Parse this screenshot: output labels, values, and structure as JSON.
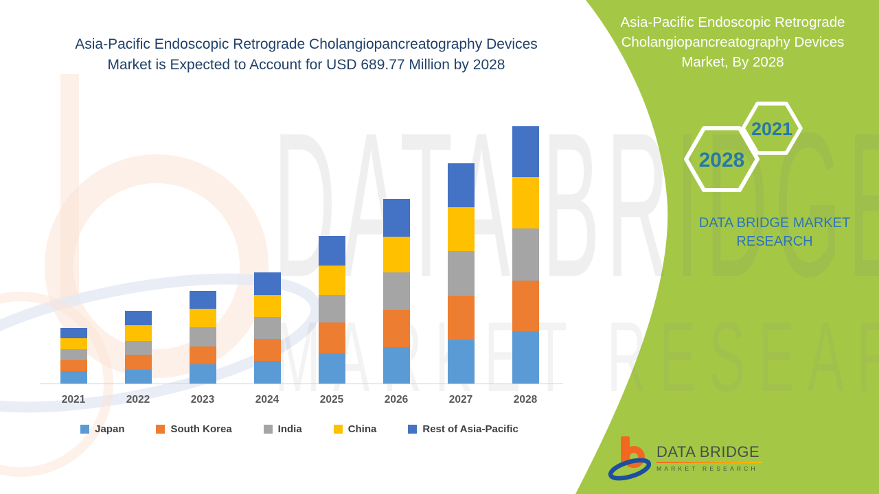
{
  "colors": {
    "title_navy": "#1f4068",
    "green_panel": "#a4c846",
    "axis_label_gray": "#595959",
    "legend_text_gray": "#404040",
    "hex_year_blue": "#2878a8",
    "brand_blue": "#2e75b6",
    "logo_orange": "#f26822",
    "logo_blue": "#1d4f9c",
    "logo_text_gray": "#474d4b"
  },
  "header": {
    "title_lines": [
      "Asia-Pacific Endoscopic Retrograde Cholangiopancreatography Devices",
      "Market is Expected to Account for USD 689.77 Million by 2028"
    ]
  },
  "chart_data": {
    "type": "bar",
    "stacked": true,
    "title": "Asia-Pacific Endoscopic Retrograde Cholangiopancreatography Devices Market is Expected to Account for USD 689.77 Million by 2028",
    "unit": "USD Million",
    "xlabel": "",
    "ylabel": "",
    "ylim": [
      0,
      700
    ],
    "y_axis_visible": false,
    "gridlines": false,
    "legend_position": "bottom",
    "categories": [
      "2021",
      "2022",
      "2023",
      "2024",
      "2025",
      "2026",
      "2027",
      "2028"
    ],
    "series": [
      {
        "name": "Japan",
        "color": "#5b9bd5",
        "values": [
          32.5,
          36.8,
          50.9,
          61.2,
          80.9,
          98.0,
          118.2,
          139.0
        ]
      },
      {
        "name": "South Korea",
        "color": "#ed7d31",
        "values": [
          30.0,
          39.7,
          48.9,
          58.3,
          83.3,
          98.7,
          118.2,
          137.3
        ]
      },
      {
        "name": "India",
        "color": "#a5a5a5",
        "values": [
          29.4,
          38.0,
          50.4,
          59.4,
          73.0,
          101.6,
          118.9,
          139.1
        ]
      },
      {
        "name": "China",
        "color": "#ffc000",
        "values": [
          29.4,
          42.8,
          50.2,
          58.8,
          78.5,
          95.0,
          118.2,
          137.8
        ]
      },
      {
        "name": "Rest of Asia-Pacific",
        "color": "#4472c4",
        "values": [
          27.0,
          38.6,
          48.3,
          60.7,
          80.1,
          101.6,
          116.5,
          136.6
        ]
      }
    ],
    "annotated_total_2028": 689.77
  },
  "right_panel": {
    "title_lines": [
      "Asia-Pacific Endoscopic Retrograde",
      "Cholangiopancreatography Devices",
      "Market, By 2028"
    ],
    "hexagons": [
      {
        "label": "2021"
      },
      {
        "label": "2028"
      }
    ],
    "brand_text": "DATA BRIDGE MARKET RESEARCH"
  },
  "watermark": {
    "line1": "DATA BRIDGE",
    "line2": "MARKET RESEARCH"
  },
  "footer_logo": {
    "brand": "DATA BRIDGE",
    "tagline": "MARKET RESEARCH"
  }
}
